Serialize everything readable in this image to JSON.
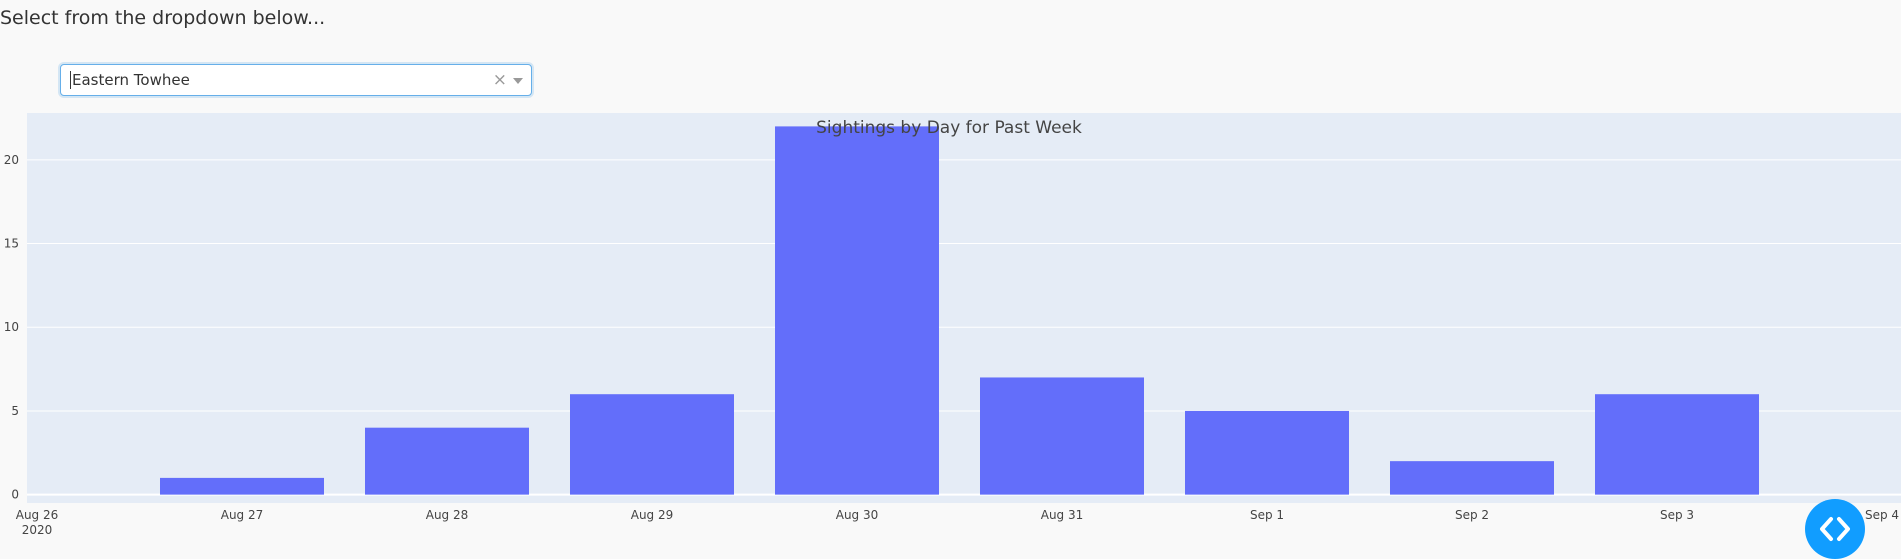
{
  "prompt": "Select from the dropdown below...",
  "dropdown": {
    "value": "Eastern Towhee",
    "clear_symbol": "×"
  },
  "colors": {
    "bar": "#636efa",
    "plot_bg": "#e5ecf6",
    "fab": "#119dff"
  },
  "chart_data": {
    "type": "bar",
    "title": "Sightings by Day for Past Week",
    "xlabel": "",
    "ylabel": "",
    "categories": [
      "Aug 27",
      "Aug 28",
      "Aug 29",
      "Aug 30",
      "Aug 31",
      "Sep 1",
      "Sep 2",
      "Sep 3"
    ],
    "values": [
      1,
      4,
      6,
      22,
      7,
      5,
      2,
      6
    ],
    "ylim": [
      -0.5,
      22.8
    ],
    "yticks": [
      0,
      5,
      10,
      15,
      20
    ],
    "xticks": [
      {
        "label": "Aug 26",
        "sub": "2020"
      },
      {
        "label": "Aug 27"
      },
      {
        "label": "Aug 28"
      },
      {
        "label": "Aug 29"
      },
      {
        "label": "Aug 30"
      },
      {
        "label": "Aug 31"
      },
      {
        "label": "Sep 1"
      },
      {
        "label": "Sep 2"
      },
      {
        "label": "Sep 3"
      },
      {
        "label": "Sep 4"
      }
    ],
    "grid": true
  },
  "fab": {
    "icon": "code-arrows-icon"
  }
}
